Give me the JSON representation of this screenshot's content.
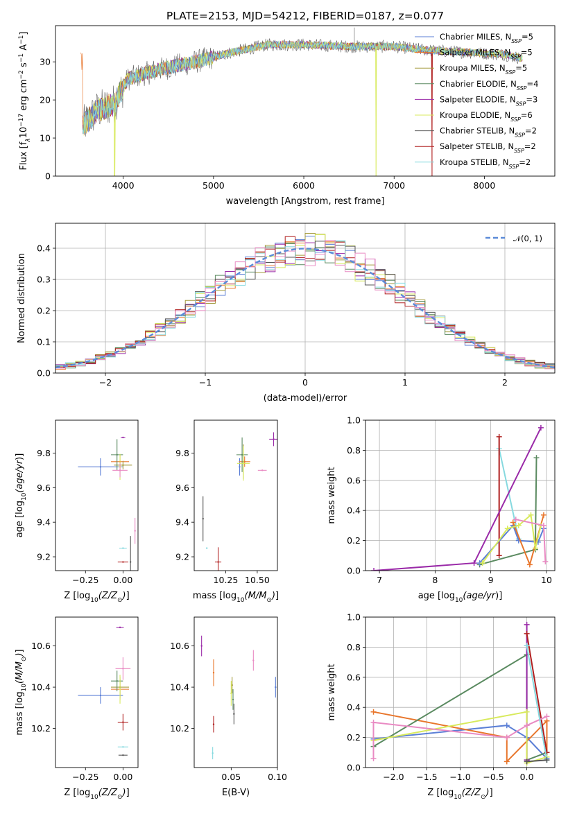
{
  "title": "PLATE=2153, MJD=54212, FIBERID=0187, z=0.077",
  "colors": {
    "Chabrier MILES": "#5b7fd6",
    "Salpeter MILES": "#e8762c",
    "Kroupa MILES": "#a39a3c",
    "Chabrier ELODIE": "#5a8a60",
    "Salpeter ELODIE": "#9a2aa8",
    "Kroupa ELODIE": "#d8ea5c",
    "Chabrier STELIB": "#555555",
    "Salpeter STELIB": "#b02020",
    "Kroupa STELIB": "#86d9df",
    "extra": "#e98ac3",
    "normal": "#5b8bd8"
  },
  "chart_data": [
    {
      "id": "spectrum",
      "type": "line",
      "xlabel": "wavelength [Angstrom, rest frame]",
      "ylabel_parts": [
        "Flux [f",
        "λ",
        "10",
        "−17",
        " erg cm",
        "−2",
        " s",
        "−1",
        " A",
        "−1",
        "]"
      ],
      "xlim": [
        3250,
        8780
      ],
      "ylim": [
        0,
        39.5
      ],
      "xticks": [
        4000,
        5000,
        6000,
        7000,
        8000
      ],
      "yticks": [
        0,
        10,
        20,
        30
      ],
      "legend_position": "upper right",
      "legend": [
        {
          "name": "Chabrier MILES",
          "n": 5
        },
        {
          "name": "Salpeter MILES",
          "n": 5
        },
        {
          "name": "Kroupa MILES",
          "n": 5
        },
        {
          "name": "Chabrier ELODIE",
          "n": 4
        },
        {
          "name": "Salpeter ELODIE",
          "n": 3
        },
        {
          "name": "Kroupa ELODIE",
          "n": 6
        },
        {
          "name": "Chabrier STELIB",
          "n": 2
        },
        {
          "name": "Salpeter STELIB",
          "n": 2
        },
        {
          "name": "Kroupa STELIB",
          "n": 2
        }
      ],
      "continuum": [
        [
          3550,
          13
        ],
        [
          3700,
          17
        ],
        [
          3900,
          19
        ],
        [
          4050,
          25.5
        ],
        [
          4400,
          28
        ],
        [
          4800,
          30
        ],
        [
          5200,
          32.5
        ],
        [
          5600,
          34.5
        ],
        [
          6000,
          34.5
        ],
        [
          6500,
          34
        ],
        [
          7000,
          34
        ],
        [
          7400,
          33
        ],
        [
          7800,
          32.5
        ],
        [
          8200,
          32
        ],
        [
          8400,
          31
        ]
      ],
      "drops": [
        {
          "series": "Kroupa ELODIE",
          "x": 3905
        },
        {
          "series": "Kroupa ELODIE",
          "x": 6800
        },
        {
          "series": "Salpeter STELIB",
          "x": 7420
        }
      ],
      "spike": {
        "x": 6560,
        "y": 39
      }
    },
    {
      "id": "residuals",
      "type": "step",
      "xlabel": "(data-model)/error",
      "ylabel": "Normed distribution",
      "xlim": [
        -2.5,
        2.5
      ],
      "ylim": [
        0,
        0.48
      ],
      "xticks": [
        -2,
        -1,
        0,
        1,
        2
      ],
      "yticks": [
        0.0,
        0.1,
        0.2,
        0.3,
        0.4
      ],
      "grid": true,
      "legend_label": "𝒩(0, 1)",
      "legend_position": "upper right",
      "bin_width": 0.1
    },
    {
      "id": "age-vs-Z",
      "type": "errorbar",
      "xlabel": "Z [log10(Z/Z⊙)]",
      "ylabel": "age  [log10(age/yr)]",
      "xlim": [
        -0.45,
        0.1
      ],
      "ylim": [
        9.12,
        9.99
      ],
      "xticks": [
        -0.25,
        0.0
      ],
      "yticks": [
        9.2,
        9.4,
        9.6,
        9.8
      ],
      "points": [
        {
          "c": "Chabrier MILES",
          "x": -0.15,
          "y": 9.72,
          "xe": 0.3,
          "ye": 0.1
        },
        {
          "c": "Salpeter MILES",
          "x": -0.02,
          "y": 9.75,
          "xe": 0.12,
          "ye": 0.08
        },
        {
          "c": "Kroupa MILES",
          "x": 0.0,
          "y": 9.73,
          "xe": 0.12,
          "ye": 0.05
        },
        {
          "c": "Chabrier ELODIE",
          "x": -0.04,
          "y": 9.79,
          "xe": 0.08,
          "ye": 0.18
        },
        {
          "c": "Salpeter ELODIE",
          "x": 0.0,
          "y": 9.89,
          "xe": 0.03,
          "ye": 0.0
        },
        {
          "c": "Kroupa ELODIE",
          "x": -0.02,
          "y": 9.72,
          "xe": 0.02,
          "ye": 0.15
        },
        {
          "c": "Chabrier STELIB",
          "x": 0.05,
          "y": 9.17,
          "xe": 0.0,
          "ye": 0.3
        },
        {
          "c": "Salpeter STELIB",
          "x": 0.0,
          "y": 9.17,
          "xe": 0.07,
          "ye": 0.0
        },
        {
          "c": "Kroupa STELIB",
          "x": 0.0,
          "y": 9.25,
          "xe": 0.05,
          "ye": 0.0
        },
        {
          "c": "extra",
          "x": -0.02,
          "y": 9.7,
          "xe": 0.1,
          "ye": 0.08
        },
        {
          "c": "extra",
          "x": 0.08,
          "y": 9.35,
          "xe": 0.0,
          "ye": 0.15
        }
      ]
    },
    {
      "id": "age-vs-mass",
      "type": "errorbar",
      "xlabel": "mass [log10(M/M⊙)]",
      "ylabel": "",
      "xlim": [
        10.0,
        10.66
      ],
      "ylim": [
        9.12,
        9.99
      ],
      "xticks": [
        10.25,
        10.5
      ],
      "yticks": [
        9.2,
        9.4,
        9.6,
        9.8
      ],
      "points": [
        {
          "c": "Chabrier MILES",
          "x": 10.36,
          "y": 9.72,
          "xe": 0.0,
          "ye": 0.1
        },
        {
          "c": "Salpeter MILES",
          "x": 10.4,
          "y": 9.75,
          "xe": 0.09,
          "ye": 0.06
        },
        {
          "c": "Kroupa MILES",
          "x": 10.39,
          "y": 9.75,
          "xe": 0.0,
          "ye": 0.2
        },
        {
          "c": "Chabrier ELODIE",
          "x": 10.38,
          "y": 9.79,
          "xe": 0.09,
          "ye": 0.2
        },
        {
          "c": "Salpeter ELODIE",
          "x": 10.63,
          "y": 9.88,
          "xe": 0.07,
          "ye": 0.08
        },
        {
          "c": "Kroupa ELODIE",
          "x": 10.39,
          "y": 9.74,
          "xe": 0.1,
          "ye": 0.2
        },
        {
          "c": "Chabrier STELIB",
          "x": 10.07,
          "y": 9.42,
          "xe": 0.0,
          "ye": 0.26
        },
        {
          "c": "Salpeter STELIB",
          "x": 10.19,
          "y": 9.17,
          "xe": 0.05,
          "ye": 0.17
        },
        {
          "c": "Kroupa STELIB",
          "x": 10.1,
          "y": 9.25,
          "xe": 0.0,
          "ye": 0.0
        },
        {
          "c": "extra",
          "x": 10.54,
          "y": 9.7,
          "xe": 0.07,
          "ye": 0.0
        }
      ]
    },
    {
      "id": "weight-vs-age",
      "type": "line",
      "xlabel": "age  [log10(age/yr)]",
      "ylabel": "mass weight",
      "xlim": [
        6.75,
        10.15
      ],
      "ylim": [
        0,
        1.0
      ],
      "xticks": [
        7,
        8,
        9,
        10
      ],
      "yticks": [
        0.0,
        0.2,
        0.4,
        0.6,
        0.8,
        1.0
      ],
      "grid": true,
      "series": [
        {
          "c": "Kroupa STELIB",
          "points": [
            [
              9.15,
              0.81
            ],
            [
              9.45,
              0.3
            ],
            [
              9.5,
              0.21
            ]
          ]
        },
        {
          "c": "Salpeter STELIB",
          "points": [
            [
              9.15,
              0.89
            ],
            [
              9.15,
              0.1
            ]
          ]
        },
        {
          "c": "Salpeter ELODIE",
          "points": [
            [
              6.9,
              0.0
            ],
            [
              8.7,
              0.05
            ],
            [
              9.9,
              0.95
            ]
          ]
        },
        {
          "c": "Chabrier ELODIE",
          "points": [
            [
              8.8,
              0.04
            ],
            [
              9.8,
              0.14
            ],
            [
              9.82,
              0.75
            ]
          ]
        },
        {
          "c": "Chabrier MILES",
          "points": [
            [
              8.8,
              0.05
            ],
            [
              9.4,
              0.3
            ],
            [
              9.5,
              0.2
            ],
            [
              9.85,
              0.19
            ],
            [
              9.95,
              0.28
            ]
          ]
        },
        {
          "c": "Salpeter MILES",
          "points": [
            [
              9.4,
              0.32
            ],
            [
              9.7,
              0.04
            ],
            [
              9.95,
              0.37
            ]
          ]
        },
        {
          "c": "Kroupa ELODIE",
          "points": [
            [
              8.85,
              0.05
            ],
            [
              9.3,
              0.28
            ],
            [
              9.5,
              0.3
            ],
            [
              9.72,
              0.37
            ],
            [
              9.8,
              0.15
            ],
            [
              9.9,
              0.3
            ]
          ]
        },
        {
          "c": "extra",
          "points": [
            [
              9.45,
              0.34
            ],
            [
              9.95,
              0.3
            ],
            [
              9.98,
              0.06
            ]
          ]
        }
      ]
    },
    {
      "id": "mass-vs-Z",
      "type": "errorbar",
      "xlabel": "Z [log10(Z/Z⊙)]",
      "ylabel": "mass [log10(M/M⊙)]",
      "xlim": [
        -0.45,
        0.1
      ],
      "ylim": [
        10.01,
        10.74
      ],
      "xticks": [
        -0.25,
        0.0
      ],
      "yticks": [
        10.2,
        10.4,
        10.6
      ],
      "points": [
        {
          "c": "Chabrier MILES",
          "x": -0.15,
          "y": 10.36,
          "xe": 0.3,
          "ye": 0.08
        },
        {
          "c": "Salpeter MILES",
          "x": -0.02,
          "y": 10.39,
          "xe": 0.12,
          "ye": 0.1
        },
        {
          "c": "Kroupa MILES",
          "x": -0.02,
          "y": 10.4,
          "xe": 0.12,
          "ye": 0.1
        },
        {
          "c": "Chabrier ELODIE",
          "x": -0.04,
          "y": 10.43,
          "xe": 0.08,
          "ye": 0.1
        },
        {
          "c": "Salpeter ELODIE",
          "x": -0.02,
          "y": 10.69,
          "xe": 0.05,
          "ye": 0.0
        },
        {
          "c": "Kroupa ELODIE",
          "x": -0.02,
          "y": 10.39,
          "xe": 0.0,
          "ye": 0.14
        },
        {
          "c": "Chabrier STELIB",
          "x": 0.0,
          "y": 10.07,
          "xe": 0.06,
          "ye": 0.0
        },
        {
          "c": "Salpeter STELIB",
          "x": 0.0,
          "y": 10.23,
          "xe": 0.07,
          "ye": 0.08
        },
        {
          "c": "Kroupa STELIB",
          "x": 0.0,
          "y": 10.11,
          "xe": 0.07,
          "ye": 0.0
        },
        {
          "c": "extra",
          "x": 0.0,
          "y": 10.49,
          "xe": 0.1,
          "ye": 0.11
        }
      ]
    },
    {
      "id": "mass-vs-ebv",
      "type": "errorbar",
      "xlabel": "E(B-V)",
      "ylabel": "",
      "xlim": [
        0.01,
        0.1
      ],
      "ylim": [
        10.01,
        10.74
      ],
      "xticks": [
        0.05,
        0.1
      ],
      "xtick_labels": [
        "0.05",
        "0.10"
      ],
      "yticks": [
        10.2,
        10.4,
        10.6
      ],
      "points": [
        {
          "c": "Chabrier MILES",
          "x": 0.098,
          "y": 10.4,
          "xe": 0.0,
          "ye": 0.1
        },
        {
          "c": "Salpeter MILES",
          "x": 0.031,
          "y": 10.47,
          "xe": 0.0,
          "ye": 0.13
        },
        {
          "c": "Kroupa MILES",
          "x": 0.051,
          "y": 10.41,
          "xe": 0.0,
          "ye": 0.08
        },
        {
          "c": "Chabrier ELODIE",
          "x": 0.052,
          "y": 10.34,
          "xe": 0.0,
          "ye": 0.1
        },
        {
          "c": "Salpeter ELODIE",
          "x": 0.018,
          "y": 10.6,
          "xe": 0.0,
          "ye": 0.1
        },
        {
          "c": "Kroupa ELODIE",
          "x": 0.05,
          "y": 10.37,
          "xe": 0.0,
          "ye": 0.12
        },
        {
          "c": "Chabrier STELIB",
          "x": 0.053,
          "y": 10.27,
          "xe": 0.0,
          "ye": 0.1
        },
        {
          "c": "Salpeter STELIB",
          "x": 0.031,
          "y": 10.22,
          "xe": 0.0,
          "ye": 0.08
        },
        {
          "c": "Kroupa STELIB",
          "x": 0.03,
          "y": 10.08,
          "xe": 0.0,
          "ye": 0.06
        },
        {
          "c": "extra",
          "x": 0.074,
          "y": 10.53,
          "xe": 0.0,
          "ye": 0.1
        }
      ]
    },
    {
      "id": "weight-vs-Z",
      "type": "line",
      "xlabel": "Z [log10(Z/Z⊙)]",
      "ylabel": "mass weight",
      "xlim": [
        -2.42,
        0.42
      ],
      "ylim": [
        0,
        1.0
      ],
      "xticks": [
        -2.0,
        -1.5,
        -1.0,
        -0.5,
        0.0
      ],
      "yticks": [
        0.0,
        0.2,
        0.4,
        0.6,
        0.8,
        1.0
      ],
      "grid": true,
      "series": [
        {
          "c": "Chabrier MILES",
          "points": [
            [
              -2.3,
              0.19
            ],
            [
              -0.3,
              0.28
            ],
            [
              0.0,
              0.2
            ],
            [
              0.3,
              0.06
            ]
          ]
        },
        {
          "c": "Salpeter MILES",
          "points": [
            [
              -2.3,
              0.37
            ],
            [
              -0.3,
              0.2
            ],
            [
              -0.3,
              0.04
            ],
            [
              0.3,
              0.31
            ],
            [
              0.3,
              0.1
            ]
          ]
        },
        {
          "c": "Chabrier ELODIE",
          "points": [
            [
              -2.3,
              0.14
            ],
            [
              0.0,
              0.75
            ],
            [
              0.0,
              0.05
            ],
            [
              0.3,
              0.1
            ]
          ]
        },
        {
          "c": "Salpeter ELODIE",
          "points": [
            [
              0.0,
              0.95
            ],
            [
              0.0,
              0.05
            ]
          ]
        },
        {
          "c": "Salpeter STELIB",
          "points": [
            [
              0.0,
              0.89
            ],
            [
              0.3,
              0.1
            ]
          ]
        },
        {
          "c": "Kroupa ELODIE",
          "points": [
            [
              -2.3,
              0.18
            ],
            [
              0.0,
              0.37
            ],
            [
              0.0,
              0.03
            ],
            [
              0.3,
              0.07
            ]
          ]
        },
        {
          "c": "extra",
          "points": [
            [
              -2.3,
              0.06
            ],
            [
              -2.3,
              0.3
            ],
            [
              -0.3,
              0.2
            ],
            [
              0.0,
              0.28
            ],
            [
              0.3,
              0.34
            ]
          ]
        },
        {
          "c": "Kroupa STELIB",
          "points": [
            [
              0.0,
              0.81
            ],
            [
              0.3,
              0.05
            ]
          ]
        },
        {
          "c": "Chabrier STELIB",
          "points": [
            [
              0.0,
              0.04
            ],
            [
              0.3,
              0.05
            ]
          ]
        }
      ]
    }
  ]
}
